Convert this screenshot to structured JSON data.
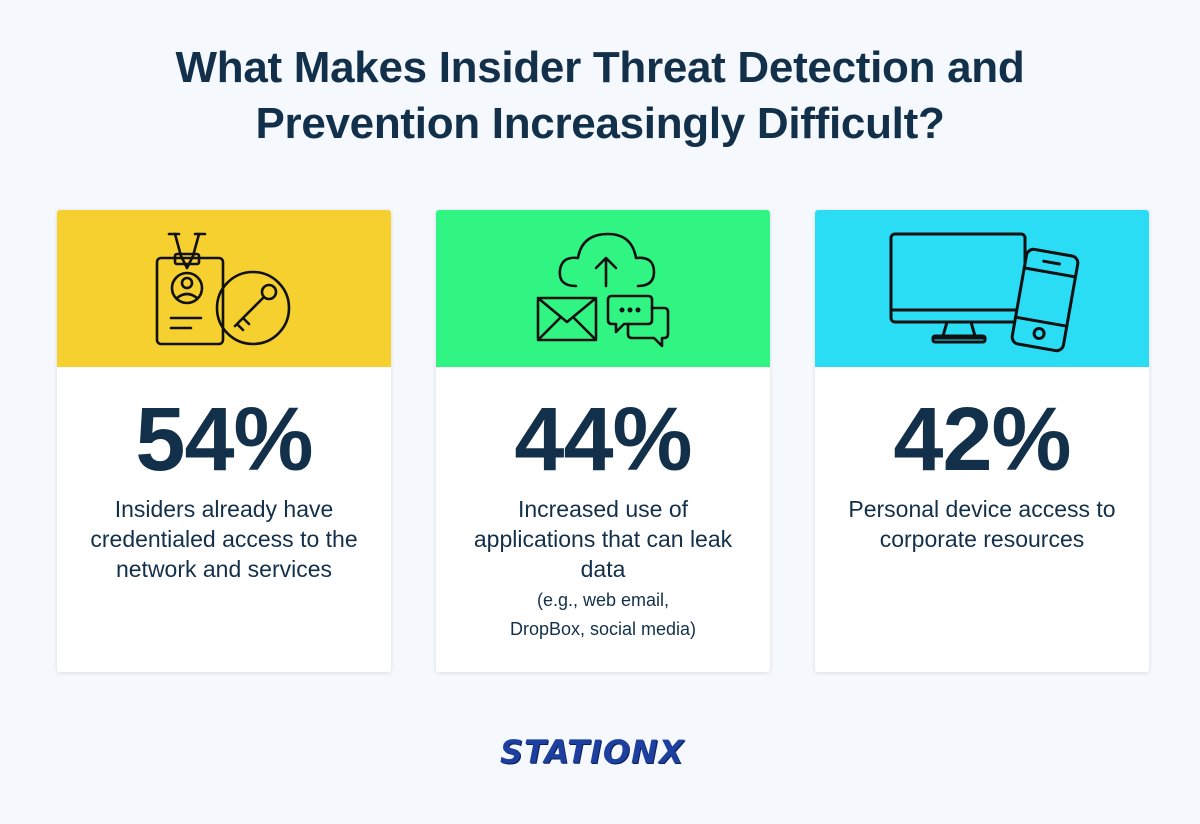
{
  "title": {
    "line1": "What Makes Insider Threat Detection and",
    "line2": "Prevention Increasingly Difficult?"
  },
  "cards": [
    {
      "stat": "54%",
      "description": "Insiders already have credentialed access to the network and services",
      "note_lines": [],
      "color": "#f5d02e",
      "icon": "id-badge-key-icon"
    },
    {
      "stat": "44%",
      "description": "Increased use of applications that can leak data",
      "note_lines": [
        "(e.g., web email,",
        "DropBox, social media)"
      ],
      "color": "#31f582",
      "icon": "cloud-upload-mail-chat-icon"
    },
    {
      "stat": "42%",
      "description": "Personal device access to corporate resources",
      "note_lines": [],
      "color": "#2bdcf5",
      "icon": "monitor-phone-icon"
    }
  ],
  "logo": {
    "text": "STATIONX",
    "color": "#1c3fa0"
  }
}
